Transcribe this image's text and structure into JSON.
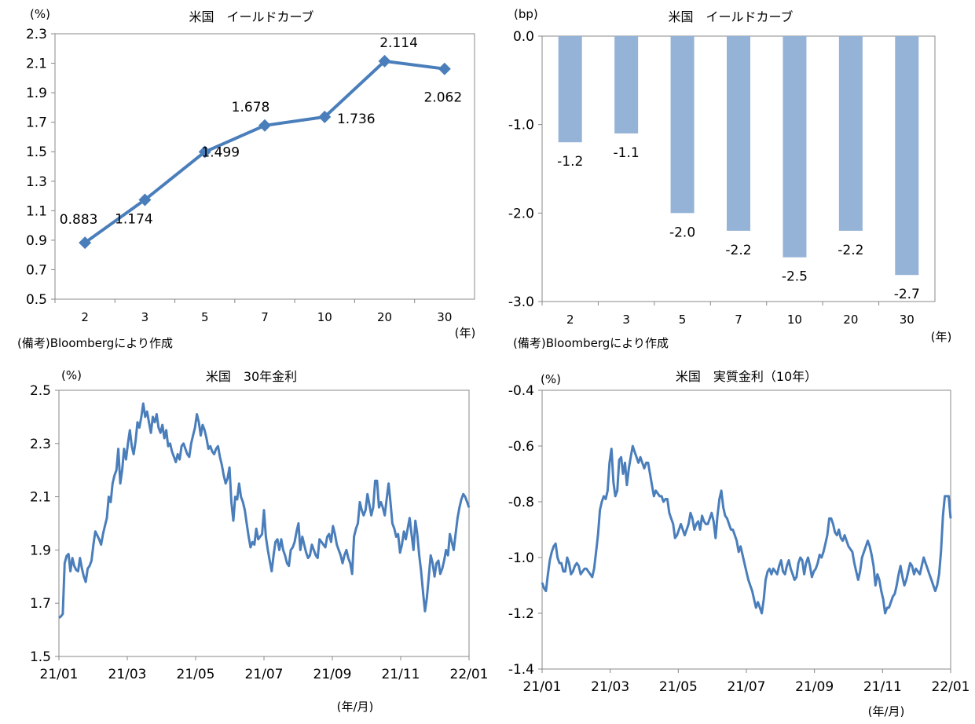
{
  "chart_data": [
    {
      "type": "line",
      "title": "米国　イールドカーブ",
      "unit": "(%)",
      "xlabel": "(年)",
      "categories": [
        "2",
        "3",
        "5",
        "7",
        "10",
        "20",
        "30"
      ],
      "values": [
        0.883,
        1.174,
        1.499,
        1.678,
        1.736,
        2.114,
        2.062
      ],
      "data_labels": [
        "0.883",
        "1.174",
        "1.499",
        "1.678",
        "1.736",
        "2.114",
        "2.062"
      ],
      "ylim": [
        0.5,
        2.3
      ],
      "yticks": [
        "2.3",
        "2.1",
        "1.9",
        "1.7",
        "1.5",
        "1.3",
        "1.1",
        "0.9",
        "0.7",
        "0.5"
      ],
      "color": "#4a7ebb",
      "marker": "diamond",
      "note": "(備考)Bloombergにより作成"
    },
    {
      "type": "bar",
      "title": "米国　イールドカーブ",
      "unit": "(bp)",
      "xlabel": "(年)",
      "categories": [
        "2",
        "3",
        "5",
        "7",
        "10",
        "20",
        "30"
      ],
      "values": [
        -1.2,
        -1.1,
        -2.0,
        -2.2,
        -2.5,
        -2.2,
        -2.7
      ],
      "data_labels": [
        "-1.2",
        "-1.1",
        "-2.0",
        "-2.2",
        "-2.5",
        "-2.2",
        "-2.7"
      ],
      "ylim": [
        -3.0,
        0.0
      ],
      "yticks": [
        "0.0",
        "-1.0",
        "-2.0",
        "-3.0"
      ],
      "color": "#95b3d7",
      "note": "(備考)Bloombergにより作成"
    },
    {
      "type": "line",
      "title": "米国　30年金利",
      "unit": "(%)",
      "xlabel": "(年/月)",
      "x_tick_labels": [
        "21/01",
        "21/03",
        "21/05",
        "21/07",
        "21/09",
        "21/11",
        "22/01"
      ],
      "ylim": [
        1.5,
        2.5
      ],
      "yticks": [
        "2.5",
        "2.3",
        "2.1",
        "1.9",
        "1.7",
        "1.5"
      ],
      "color": "#4a7ebb",
      "values": [
        1.645,
        1.65,
        1.66,
        1.85,
        1.878,
        1.885,
        1.82,
        1.87,
        1.84,
        1.825,
        1.82,
        1.87,
        1.83,
        1.8,
        1.78,
        1.83,
        1.84,
        1.86,
        1.92,
        1.97,
        1.955,
        1.94,
        1.92,
        1.96,
        1.99,
        2.02,
        2.1,
        2.08,
        2.15,
        2.18,
        2.2,
        2.28,
        2.15,
        2.2,
        2.28,
        2.24,
        2.3,
        2.35,
        2.29,
        2.26,
        2.31,
        2.38,
        2.36,
        2.4,
        2.45,
        2.4,
        2.42,
        2.38,
        2.34,
        2.4,
        2.38,
        2.41,
        2.36,
        2.34,
        2.37,
        2.32,
        2.35,
        2.29,
        2.3,
        2.27,
        2.25,
        2.23,
        2.26,
        2.24,
        2.29,
        2.3,
        2.28,
        2.26,
        2.25,
        2.3,
        2.33,
        2.36,
        2.41,
        2.38,
        2.33,
        2.37,
        2.35,
        2.32,
        2.28,
        2.29,
        2.27,
        2.26,
        2.28,
        2.29,
        2.25,
        2.22,
        2.18,
        2.15,
        2.17,
        2.21,
        2.08,
        2.01,
        2.1,
        2.09,
        2.15,
        2.1,
        2.08,
        2.05,
        2.0,
        1.95,
        1.91,
        1.93,
        1.92,
        1.98,
        1.94,
        1.95,
        1.96,
        2.05,
        1.95,
        1.9,
        1.86,
        1.82,
        1.88,
        1.93,
        1.94,
        1.9,
        1.94,
        1.9,
        1.88,
        1.85,
        1.84,
        1.9,
        1.91,
        1.93,
        1.97,
        2.0,
        1.9,
        1.95,
        1.92,
        1.89,
        1.87,
        1.88,
        1.92,
        1.9,
        1.88,
        1.87,
        1.94,
        1.93,
        1.92,
        1.91,
        1.95,
        1.96,
        1.93,
        1.99,
        1.96,
        1.92,
        1.9,
        1.88,
        1.85,
        1.88,
        1.9,
        1.87,
        1.85,
        1.81,
        1.95,
        1.98,
        2.0,
        2.08,
        2.05,
        2.03,
        2.05,
        2.11,
        2.07,
        2.03,
        2.06,
        2.16,
        2.16,
        2.06,
        2.08,
        2.06,
        2.03,
        2.09,
        2.15,
        2.08,
        2.0,
        1.98,
        1.95,
        1.96,
        1.89,
        1.92,
        1.97,
        1.94,
        1.98,
        2.02,
        1.96,
        1.9,
        2.01,
        1.96,
        1.88,
        1.82,
        1.74,
        1.67,
        1.72,
        1.8,
        1.88,
        1.85,
        1.8,
        1.85,
        1.86,
        1.81,
        1.83,
        1.86,
        1.9,
        1.88,
        1.96,
        1.93,
        1.9,
        1.96,
        2.02,
        2.06,
        2.09,
        2.11,
        2.1,
        2.08,
        2.06
      ]
    },
    {
      "type": "line",
      "title": "米国　実質金利（10年）",
      "unit": "(%)",
      "xlabel": "(年/月)",
      "x_tick_labels": [
        "21/01",
        "21/03",
        "21/05",
        "21/07",
        "21/09",
        "21/11",
        "22/01"
      ],
      "ylim": [
        -1.4,
        -0.4
      ],
      "yticks": [
        "-0.4",
        "-0.6",
        "-0.8",
        "-1.0",
        "-1.2",
        "-1.4"
      ],
      "color": "#4a7ebb",
      "values": [
        -1.09,
        -1.11,
        -1.12,
        -1.06,
        -1.01,
        -0.98,
        -0.96,
        -0.95,
        -1.0,
        -1.02,
        -1.02,
        -1.05,
        -1.05,
        -1.0,
        -1.02,
        -1.06,
        -1.05,
        -1.03,
        -1.02,
        -1.03,
        -1.06,
        -1.05,
        -1.04,
        -1.04,
        -1.05,
        -1.06,
        -1.07,
        -1.04,
        -0.98,
        -0.92,
        -0.83,
        -0.8,
        -0.78,
        -0.79,
        -0.76,
        -0.66,
        -0.61,
        -0.73,
        -0.78,
        -0.76,
        -0.65,
        -0.64,
        -0.7,
        -0.66,
        -0.74,
        -0.68,
        -0.64,
        -0.6,
        -0.62,
        -0.64,
        -0.66,
        -0.64,
        -0.66,
        -0.68,
        -0.66,
        -0.66,
        -0.7,
        -0.74,
        -0.78,
        -0.76,
        -0.77,
        -0.78,
        -0.78,
        -0.8,
        -0.79,
        -0.79,
        -0.84,
        -0.86,
        -0.88,
        -0.93,
        -0.92,
        -0.9,
        -0.88,
        -0.9,
        -0.92,
        -0.9,
        -0.88,
        -0.84,
        -0.86,
        -0.9,
        -0.88,
        -0.87,
        -0.9,
        -0.85,
        -0.87,
        -0.88,
        -0.88,
        -0.86,
        -0.84,
        -0.87,
        -0.93,
        -0.85,
        -0.79,
        -0.76,
        -0.82,
        -0.85,
        -0.86,
        -0.88,
        -0.9,
        -0.9,
        -0.92,
        -0.94,
        -0.98,
        -0.96,
        -0.99,
        -1.02,
        -1.05,
        -1.08,
        -1.1,
        -1.12,
        -1.15,
        -1.18,
        -1.16,
        -1.18,
        -1.2,
        -1.15,
        -1.08,
        -1.05,
        -1.04,
        -1.06,
        -1.04,
        -1.05,
        -1.06,
        -1.03,
        -1.01,
        -1.05,
        -1.06,
        -1.03,
        -1.01,
        -1.04,
        -1.06,
        -1.08,
        -1.07,
        -1.02,
        -1.0,
        -1.01,
        -1.06,
        -1.02,
        -1.0,
        -1.03,
        -1.07,
        -1.05,
        -1.04,
        -1.02,
        -0.99,
        -1.0,
        -0.98,
        -0.95,
        -0.92,
        -0.86,
        -0.86,
        -0.88,
        -0.91,
        -0.92,
        -0.9,
        -0.93,
        -0.94,
        -0.92,
        -0.94,
        -0.96,
        -0.97,
        -0.98,
        -1.02,
        -1.05,
        -1.08,
        -1.05,
        -1.0,
        -0.98,
        -0.96,
        -0.94,
        -0.96,
        -0.99,
        -1.03,
        -1.1,
        -1.06,
        -1.08,
        -1.12,
        -1.15,
        -1.2,
        -1.18,
        -1.18,
        -1.16,
        -1.14,
        -1.13,
        -1.1,
        -1.06,
        -1.03,
        -1.07,
        -1.1,
        -1.08,
        -1.05,
        -1.02,
        -1.03,
        -1.06,
        -1.04,
        -1.05,
        -1.06,
        -1.03,
        -1.0,
        -1.02,
        -1.04,
        -1.06,
        -1.08,
        -1.1,
        -1.12,
        -1.1,
        -1.06,
        -0.98,
        -0.85,
        -0.78,
        -0.78,
        -0.78,
        -0.86
      ]
    }
  ]
}
